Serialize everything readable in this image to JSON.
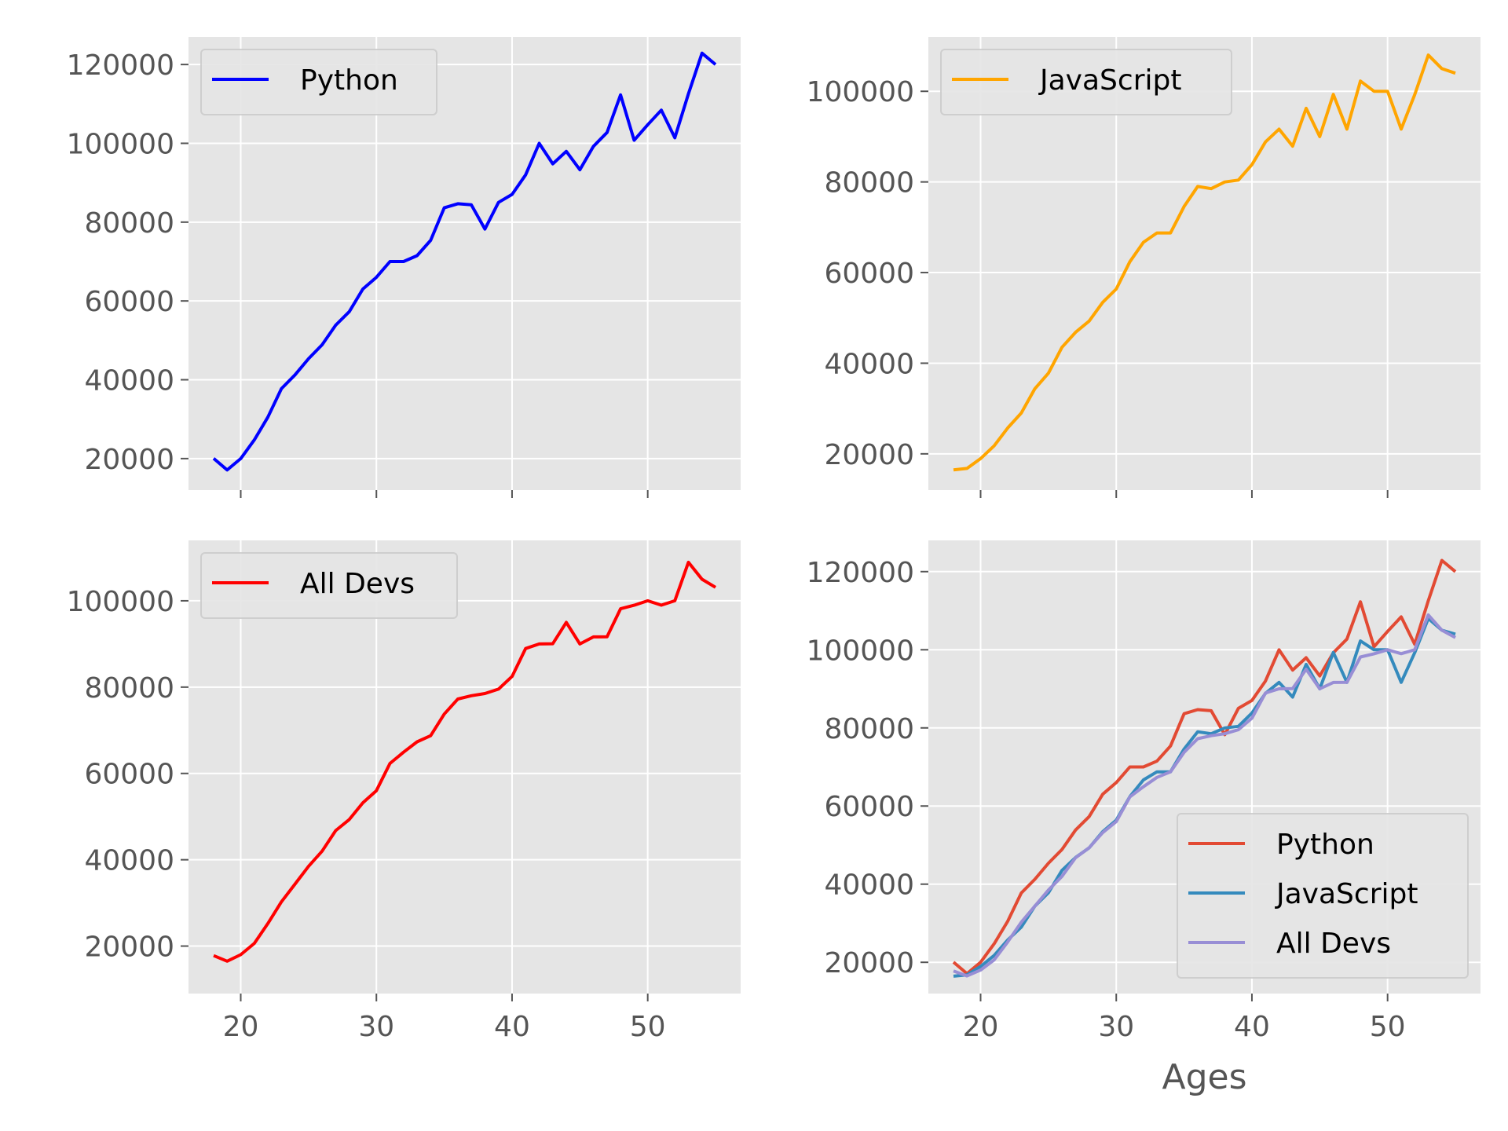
{
  "chart_data": [
    {
      "type": "line",
      "x": [
        18,
        19,
        20,
        21,
        22,
        23,
        24,
        25,
        26,
        27,
        28,
        29,
        30,
        31,
        32,
        33,
        34,
        35,
        36,
        37,
        38,
        39,
        40,
        41,
        42,
        43,
        44,
        45,
        46,
        47,
        48,
        49,
        50,
        51,
        52,
        53,
        54,
        55
      ],
      "series": [
        {
          "name": "Python",
          "color": "#0000ff",
          "values": [
            20046,
            17100,
            20000,
            24744,
            30500,
            37732,
            41247,
            45372,
            48876,
            53850,
            57287,
            63016,
            65998,
            70003,
            70000,
            71496,
            75370,
            83640,
            84666,
            84392,
            78254,
            85000,
            87038,
            91991,
            100000,
            94796,
            97962,
            93302,
            99240,
            102736,
            112285,
            100771,
            104708,
            108423,
            101407,
            112542,
            122870,
            120000
          ]
        }
      ],
      "ylim": [
        12000,
        127000
      ],
      "yticks": [
        20000,
        40000,
        60000,
        80000,
        100000,
        120000
      ],
      "xticks": [
        20,
        30,
        40,
        50
      ],
      "show_xtick_labels": false,
      "xlabel": "",
      "legend_position": "upper left",
      "grid": true
    },
    {
      "type": "line",
      "x": [
        18,
        19,
        20,
        21,
        22,
        23,
        24,
        25,
        26,
        27,
        28,
        29,
        30,
        31,
        32,
        33,
        34,
        35,
        36,
        37,
        38,
        39,
        40,
        41,
        42,
        43,
        44,
        45,
        46,
        47,
        48,
        49,
        50,
        51,
        52,
        53,
        54,
        55
      ],
      "series": [
        {
          "name": "JavaScript",
          "color": "#ffa500",
          "values": [
            16446,
            16791,
            18942,
            21780,
            25704,
            29000,
            34372,
            37810,
            43515,
            46823,
            49293,
            53437,
            56373,
            62375,
            66674,
            68745,
            68746,
            74583,
            79000,
            78508,
            79996,
            80403,
            83820,
            88833,
            91660,
            87892,
            96243,
            90000,
            99313,
            91660,
            102264,
            100000,
            100000,
            91660,
            99240,
            108000,
            105000,
            104000
          ]
        }
      ],
      "ylim": [
        12000,
        112000
      ],
      "yticks": [
        20000,
        40000,
        60000,
        80000,
        100000
      ],
      "xticks": [
        20,
        30,
        40,
        50
      ],
      "show_xtick_labels": false,
      "xlabel": "",
      "legend_position": "upper left",
      "grid": true
    },
    {
      "type": "line",
      "x": [
        18,
        19,
        20,
        21,
        22,
        23,
        24,
        25,
        26,
        27,
        28,
        29,
        30,
        31,
        32,
        33,
        34,
        35,
        36,
        37,
        38,
        39,
        40,
        41,
        42,
        43,
        44,
        45,
        46,
        47,
        48,
        49,
        50,
        51,
        52,
        53,
        54,
        55
      ],
      "series": [
        {
          "name": "All Devs",
          "color": "#ff0000",
          "values": [
            17784,
            16500,
            18012,
            20628,
            25206,
            30252,
            34368,
            38496,
            42000,
            46752,
            49320,
            53200,
            56000,
            62316,
            64928,
            67317,
            68748,
            73752,
            77232,
            78000,
            78508,
            79536,
            82488,
            88935,
            90000,
            90056,
            95000,
            90000,
            91633,
            91660,
            98150,
            98964,
            100000,
            98988,
            100000,
            108923,
            105000,
            103117
          ]
        }
      ],
      "ylim": [
        9000,
        114000
      ],
      "yticks": [
        20000,
        40000,
        60000,
        80000,
        100000
      ],
      "xticks": [
        20,
        30,
        40,
        50
      ],
      "show_xtick_labels": true,
      "xlabel": "",
      "legend_position": "upper left",
      "grid": true
    },
    {
      "type": "line",
      "x": [
        18,
        19,
        20,
        21,
        22,
        23,
        24,
        25,
        26,
        27,
        28,
        29,
        30,
        31,
        32,
        33,
        34,
        35,
        36,
        37,
        38,
        39,
        40,
        41,
        42,
        43,
        44,
        45,
        46,
        47,
        48,
        49,
        50,
        51,
        52,
        53,
        54,
        55
      ],
      "series": [
        {
          "name": "Python",
          "color": "#e24a33",
          "values": [
            20046,
            17100,
            20000,
            24744,
            30500,
            37732,
            41247,
            45372,
            48876,
            53850,
            57287,
            63016,
            65998,
            70003,
            70000,
            71496,
            75370,
            83640,
            84666,
            84392,
            78254,
            85000,
            87038,
            91991,
            100000,
            94796,
            97962,
            93302,
            99240,
            102736,
            112285,
            100771,
            104708,
            108423,
            101407,
            112542,
            122870,
            120000
          ]
        },
        {
          "name": "JavaScript",
          "color": "#348abd",
          "values": [
            16446,
            16791,
            18942,
            21780,
            25704,
            29000,
            34372,
            37810,
            43515,
            46823,
            49293,
            53437,
            56373,
            62375,
            66674,
            68745,
            68746,
            74583,
            79000,
            78508,
            79996,
            80403,
            83820,
            88833,
            91660,
            87892,
            96243,
            90000,
            99313,
            91660,
            102264,
            100000,
            100000,
            91660,
            99240,
            108000,
            105000,
            104000
          ]
        },
        {
          "name": "All Devs",
          "color": "#988ed5",
          "values": [
            17784,
            16500,
            18012,
            20628,
            25206,
            30252,
            34368,
            38496,
            42000,
            46752,
            49320,
            53200,
            56000,
            62316,
            64928,
            67317,
            68748,
            73752,
            77232,
            78000,
            78508,
            79536,
            82488,
            88935,
            90000,
            90056,
            95000,
            90000,
            91633,
            91660,
            98150,
            98964,
            100000,
            98988,
            100000,
            108923,
            105000,
            103117
          ]
        }
      ],
      "ylim": [
        12000,
        128000
      ],
      "yticks": [
        20000,
        40000,
        60000,
        80000,
        100000,
        120000
      ],
      "xticks": [
        20,
        30,
        40,
        50
      ],
      "show_xtick_labels": true,
      "xlabel": "Ages",
      "legend_position": "lower right",
      "grid": true
    }
  ]
}
